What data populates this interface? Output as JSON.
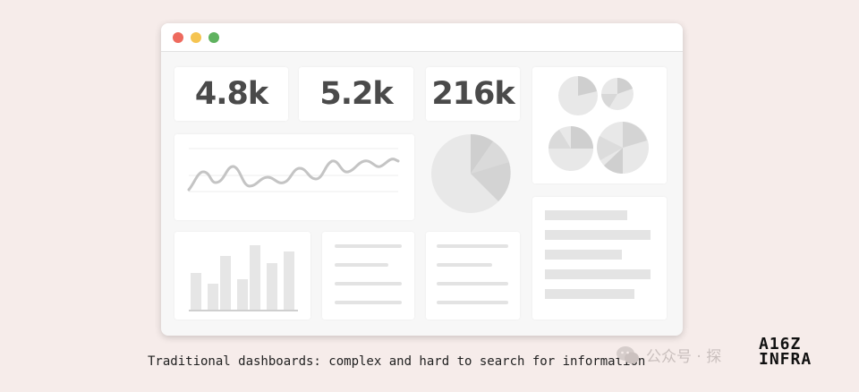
{
  "colors": {
    "close": "#ee6a5e",
    "minimize": "#f5c451",
    "maximize": "#5fb25f"
  },
  "metrics": [
    "4.8k",
    "5.2k",
    "216k"
  ],
  "caption": "Traditional dashboards: complex and hard to search for information",
  "watermark": {
    "icon": "wechat-icon",
    "text": "公众号 · 探"
  },
  "logo": {
    "line1": "A16Z",
    "line2": "INFRA"
  }
}
